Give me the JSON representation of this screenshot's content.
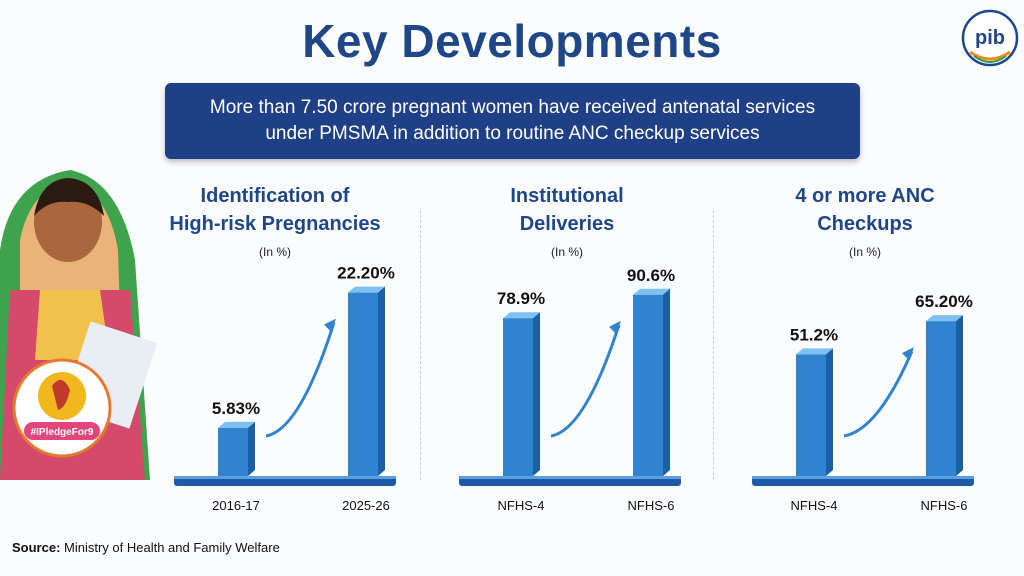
{
  "header": {
    "title": "Key Developments",
    "banner": "More than 7.50 crore pregnant women have received antenatal services under PMSMA in addition to routine ANC checkup services",
    "logo_text": "pib"
  },
  "badge": {
    "hashtag": "#IPledgeFor9"
  },
  "source": {
    "label": "Source:",
    "text": " Ministry of Health and Family Welfare"
  },
  "colors": {
    "title": "#1f4788",
    "banner": "#1f3f86",
    "bar": "#2f83cf",
    "arrow": "#2f83cf"
  },
  "chart_data": [
    {
      "type": "bar",
      "title_line1": "Identification of",
      "title_line2": "High-risk Pregnancies",
      "unit": "(In %)",
      "categories": [
        "2016-17",
        "2025-26"
      ],
      "values": [
        5.83,
        22.2
      ],
      "data_labels": [
        "5.83%",
        "22.20%"
      ],
      "ylim": [
        0,
        23
      ]
    },
    {
      "type": "bar",
      "title_line1": "Institutional",
      "title_line2": "Deliveries",
      "unit": "(In %)",
      "categories": [
        "NFHS-4",
        "NFHS-6"
      ],
      "values": [
        78.9,
        90.6
      ],
      "data_labels": [
        "78.9%",
        "90.6%"
      ],
      "ylim": [
        0,
        95
      ]
    },
    {
      "type": "bar",
      "title_line1": "4 or more ANC",
      "title_line2": "Checkups",
      "unit": "(In %)",
      "categories": [
        "NFHS-4",
        "NFHS-6"
      ],
      "values": [
        51.2,
        65.2
      ],
      "data_labels": [
        "51.2%",
        "65.20%"
      ],
      "ylim": [
        0,
        80
      ]
    }
  ]
}
